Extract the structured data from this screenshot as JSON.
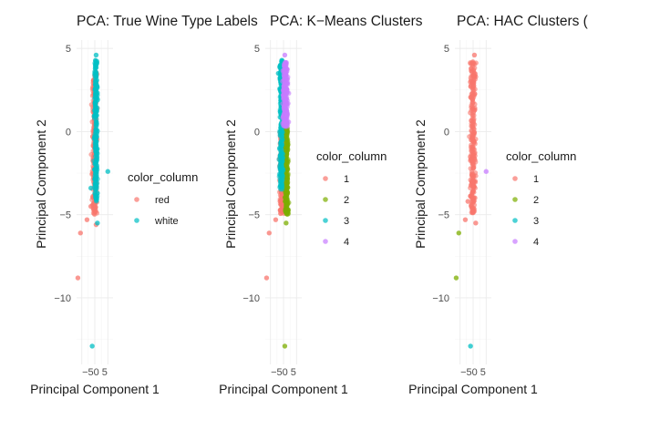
{
  "chart_data": [
    {
      "type": "scatter",
      "title": "PCA: True Wine Type Labels",
      "xlabel": "Principal Component 1",
      "ylabel": "Principal Component 2",
      "xlim": [
        -7,
        7
      ],
      "ylim": [
        -14,
        5.5
      ],
      "x_ticks": [
        -5,
        0,
        5
      ],
      "x_tick_labels": [
        "-5",
        "0",
        "5"
      ],
      "y_ticks": [
        -10,
        -5,
        0,
        5
      ],
      "y_tick_labels": [
        "−10",
        "−5",
        "0",
        "5"
      ],
      "grid": true,
      "legend": {
        "title": "color_column",
        "position": "right"
      },
      "series": [
        {
          "name": "red",
          "color": "#F8766D",
          "core": [
            -1.0,
            0.8,
            -5.0,
            3.6
          ],
          "points": [
            [
              -5.5,
              -6.1
            ],
            [
              -6.5,
              -8.8
            ],
            [
              -3,
              -5.3
            ],
            [
              -1.5,
              -4.5
            ],
            [
              0.5,
              -5.6
            ]
          ]
        },
        {
          "name": "white",
          "color": "#00BFC4",
          "core": [
            -0.2,
            1.0,
            -4.2,
            4.3
          ],
          "points": [
            [
              5,
              -2.4
            ],
            [
              -1,
              -12.9
            ],
            [
              1,
              -5.5
            ],
            [
              0.5,
              4.6
            ],
            [
              -1.5,
              -3.4
            ]
          ]
        }
      ]
    },
    {
      "type": "scatter",
      "title": "PCA: K−Means Clusters",
      "xlabel": "Principal Component 1",
      "ylabel": "Principal Component 2",
      "xlim": [
        -7,
        7
      ],
      "ylim": [
        -14,
        5.5
      ],
      "x_ticks": [
        -5,
        0,
        5
      ],
      "x_tick_labels": [
        "-5",
        "0",
        "5"
      ],
      "y_ticks": [
        -10,
        -5,
        0,
        5
      ],
      "y_tick_labels": [
        "−10",
        "−5",
        "0",
        "5"
      ],
      "grid": true,
      "legend": {
        "title": "color_column",
        "position": "right"
      },
      "series": [
        {
          "name": "1",
          "color": "#F8766D",
          "core": [
            -1.5,
            0.5,
            -5.0,
            0.0
          ],
          "points": [
            [
              -5.5,
              -6.1
            ],
            [
              -6.5,
              -8.8
            ],
            [
              -3,
              -5.3
            ]
          ]
        },
        {
          "name": "2",
          "color": "#7CAE00",
          "core": [
            0.5,
            1.8,
            -5.0,
            0.2
          ],
          "points": [
            [
              1,
              -5.5
            ],
            [
              0.5,
              -12.9
            ]
          ]
        },
        {
          "name": "3",
          "color": "#00BFC4",
          "core": [
            -1.5,
            -0.2,
            -3.5,
            4.3
          ],
          "points": [
            [
              -1.5,
              -1.0
            ],
            [
              -2,
              3.5
            ]
          ]
        },
        {
          "name": "4",
          "color": "#C77CFF",
          "core": [
            -0.2,
            1.6,
            0.3,
            4.2
          ],
          "points": [
            [
              0.5,
              4.6
            ],
            [
              1.5,
              1.0
            ]
          ]
        }
      ]
    },
    {
      "type": "scatter",
      "title": "PCA: HAC Clusters (",
      "xlabel": "Principal Component 1",
      "ylabel": "Principal Component 2",
      "xlim": [
        -7,
        7
      ],
      "ylim": [
        -14,
        5.5
      ],
      "x_ticks": [
        -5,
        0,
        5
      ],
      "x_tick_labels": [
        "-5",
        "0",
        "5"
      ],
      "y_ticks": [
        -10,
        -5,
        0,
        5
      ],
      "y_tick_labels": [
        "−10",
        "−5",
        "0",
        "5"
      ],
      "grid": true,
      "legend": {
        "title": "color_column",
        "position": "right"
      },
      "series": [
        {
          "name": "1",
          "color": "#F8766D",
          "core": [
            -1.2,
            1.0,
            -5.0,
            4.3
          ],
          "points": [
            [
              -3,
              -5.3
            ],
            [
              1,
              -5.5
            ],
            [
              0.5,
              4.6
            ],
            [
              -2,
              -4.2
            ]
          ]
        },
        {
          "name": "2",
          "color": "#7CAE00",
          "core": null,
          "points": [
            [
              -5.5,
              -6.1
            ],
            [
              -6.5,
              -8.8
            ]
          ]
        },
        {
          "name": "3",
          "color": "#00BFC4",
          "core": null,
          "points": [
            [
              -1,
              -12.9
            ]
          ]
        },
        {
          "name": "4",
          "color": "#C77CFF",
          "core": null,
          "points": [
            [
              5,
              -2.4
            ]
          ]
        }
      ]
    }
  ]
}
